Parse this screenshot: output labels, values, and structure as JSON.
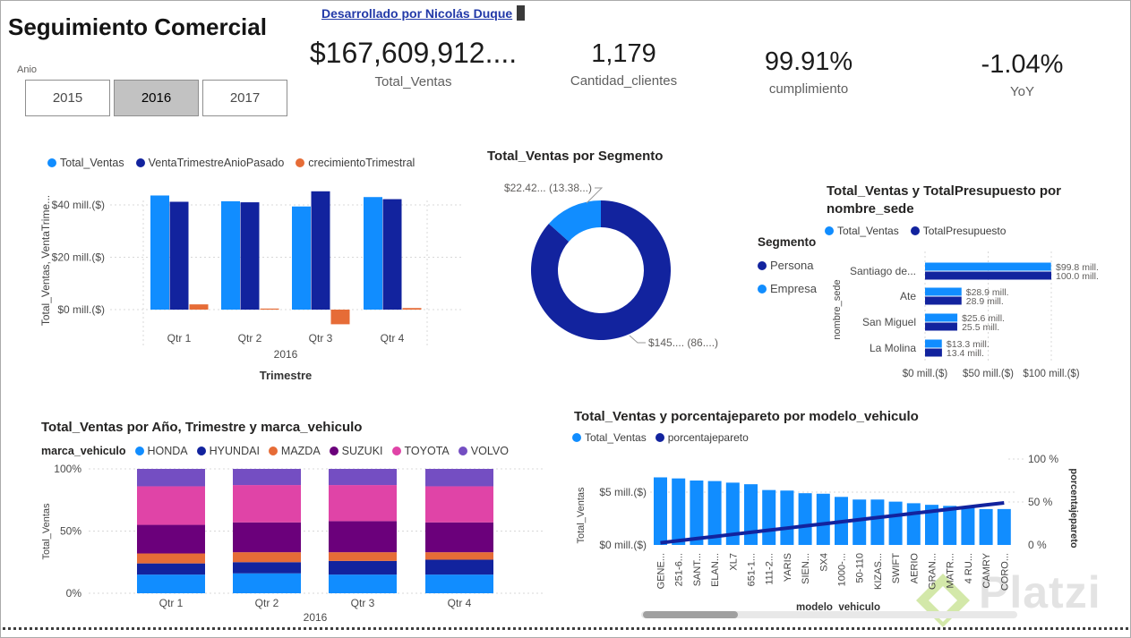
{
  "page": {
    "title": "Seguimiento Comercial",
    "credit_link": "Desarrollado por Nicolás Duque",
    "watermark": "Platzi"
  },
  "slicer": {
    "label": "Anio",
    "options": [
      {
        "label": "2015",
        "selected": false
      },
      {
        "label": "2016",
        "selected": true
      },
      {
        "label": "2017",
        "selected": false
      }
    ]
  },
  "kpis": [
    {
      "value": "$167,609,912....",
      "label": "Total_Ventas"
    },
    {
      "value": "1,179",
      "label": "Cantidad_clientes"
    },
    {
      "value": "99.91%",
      "label": "cumplimiento"
    },
    {
      "value": "-1.04%",
      "label": "YoY"
    }
  ],
  "colors": {
    "accent_blue": "#118DFF",
    "dark_blue": "#12239E",
    "orange": "#E66C37",
    "link": "#2239A8",
    "title_text": "#252423",
    "secondary_text": "#605E5C"
  },
  "chart_data": [
    {
      "id": "ventas-trimestre",
      "type": "bar",
      "title": "",
      "categories": [
        "Qtr 1",
        "Qtr 2",
        "Qtr 3",
        "Qtr 4"
      ],
      "year_label": "2016",
      "series": [
        {
          "name": "Total_Ventas",
          "color": "#118DFF",
          "values": [
            43.6,
            41.4,
            39.4,
            43.0
          ]
        },
        {
          "name": "VentaTrimestreAnioPasado",
          "color": "#12239E",
          "values": [
            41.2,
            41.0,
            45.2,
            42.2
          ]
        },
        {
          "name": "crecimientoTrimestral",
          "color": "#E66C37",
          "values": [
            2.0,
            0.4,
            -5.6,
            0.6
          ]
        }
      ],
      "ylabel": "Total_Ventas, VentaTrime...",
      "xlabel": "Trimestre",
      "yticks": [
        {
          "value": 0,
          "label": "$0 mill.($)"
        },
        {
          "value": 20,
          "label": "$20 mill.($)"
        },
        {
          "value": 40,
          "label": "$40 mill.($)"
        }
      ]
    },
    {
      "id": "ventas-segmento",
      "type": "pie",
      "title": "Total_Ventas por Segmento",
      "legend_title": "Segmento",
      "slices": [
        {
          "name": "Persona",
          "color": "#12239E",
          "pct": 86.62,
          "label": "$145.... (86....)"
        },
        {
          "name": "Empresa",
          "color": "#118DFF",
          "pct": 13.38,
          "label": "$22.42... (13.38...)"
        }
      ]
    },
    {
      "id": "ventas-presupuesto-sede",
      "type": "bar",
      "orientation": "horizontal",
      "title": "Total_Ventas y TotalPresupuesto por nombre_sede",
      "categories": [
        "Santiago de...",
        "Ate",
        "San Miguel",
        "La Molina"
      ],
      "series": [
        {
          "name": "Total_Ventas",
          "color": "#118DFF",
          "values": [
            99.8,
            28.9,
            25.6,
            13.3
          ],
          "labels": [
            "$99.8 mill.",
            "$28.9 mill.",
            "$25.6 mill.",
            "$13.3 mill."
          ]
        },
        {
          "name": "TotalPresupuesto",
          "color": "#12239E",
          "values": [
            100.0,
            28.9,
            25.5,
            13.4
          ],
          "labels": [
            "100.0 mill.",
            "28.9 mill.",
            "25.5 mill.",
            "13.4 mill."
          ]
        }
      ],
      "axis_label": "nombre_sede",
      "xticks": [
        {
          "value": 0,
          "label": "$0 mill.($)"
        },
        {
          "value": 50,
          "label": "$50 mill.($)"
        },
        {
          "value": 100,
          "label": "$100 mill.($)"
        }
      ]
    },
    {
      "id": "ventas-marca",
      "type": "bar",
      "stacked_100": true,
      "title": "Total_Ventas por Año, Trimestre y marca_vehiculo",
      "legend_title": "marca_vehiculo",
      "categories": [
        "Qtr 1",
        "Qtr 2",
        "Qtr 3",
        "Qtr 4"
      ],
      "year_label": "2016",
      "series": [
        {
          "name": "HONDA",
          "color": "#118DFF",
          "values": [
            15,
            16,
            15,
            15
          ]
        },
        {
          "name": "HYUNDAI",
          "color": "#12239E",
          "values": [
            9,
            9,
            11,
            12
          ]
        },
        {
          "name": "MAZDA",
          "color": "#E66C37",
          "values": [
            8,
            8,
            7,
            6
          ]
        },
        {
          "name": "SUZUKI",
          "color": "#6B007B",
          "values": [
            23,
            24,
            25,
            24
          ]
        },
        {
          "name": "TOYOTA",
          "color": "#E044A7",
          "values": [
            31,
            30,
            29,
            29
          ]
        },
        {
          "name": "VOLVO",
          "color": "#744EC2",
          "values": [
            14,
            13,
            13,
            14
          ]
        }
      ],
      "ylabel": "Total_Ventas",
      "yticks": [
        {
          "value": 0,
          "label": "0%"
        },
        {
          "value": 50,
          "label": "50%"
        },
        {
          "value": 100,
          "label": "100%"
        }
      ]
    },
    {
      "id": "pareto-modelo",
      "type": "bar",
      "title": "Total_Ventas y porcentajepareto por modelo_vehiculo",
      "categories": [
        "GENE...",
        "251-6...",
        "SANT...",
        "ELAN...",
        "XL7",
        "651-1...",
        "111-2...",
        "YARIS",
        "SIEN...",
        "SX4",
        "1000-...",
        "50-110",
        "KIZAS...",
        "SWIFT",
        "AERIO",
        "GRAN...",
        "MATR...",
        "4 RU...",
        "CAMRY",
        "CORO..."
      ],
      "bars": {
        "name": "Total_Ventas",
        "color": "#118DFF",
        "values": [
          6.4,
          6.3,
          6.1,
          6.05,
          5.9,
          5.75,
          5.2,
          5.15,
          4.9,
          4.85,
          4.55,
          4.3,
          4.3,
          4.1,
          3.95,
          3.8,
          3.7,
          3.55,
          3.4,
          3.4
        ]
      },
      "line": {
        "name": "porcentajepareto",
        "color": "#12239E",
        "values": [
          2.5,
          4.9,
          7.4,
          9.8,
          12.3,
          14.7,
          17.2,
          19.6,
          22.1,
          24.5,
          27.0,
          29.4,
          31.9,
          34.3,
          36.8,
          39.2,
          41.7,
          44.1,
          46.6,
          49.0
        ]
      },
      "ylabel_left": "Total_Ventas",
      "ylabel_right": "porcentajepareto",
      "xlabel": "modelo_vehiculo",
      "yticks_left": [
        {
          "value": 0,
          "label": "$0 mill.($)"
        },
        {
          "value": 5,
          "label": "$5 mill.($)"
        }
      ],
      "yticks_right": [
        {
          "value": 0,
          "label": "0 %"
        },
        {
          "value": 50,
          "label": "50 %"
        },
        {
          "value": 100,
          "label": "100 %"
        }
      ]
    }
  ]
}
